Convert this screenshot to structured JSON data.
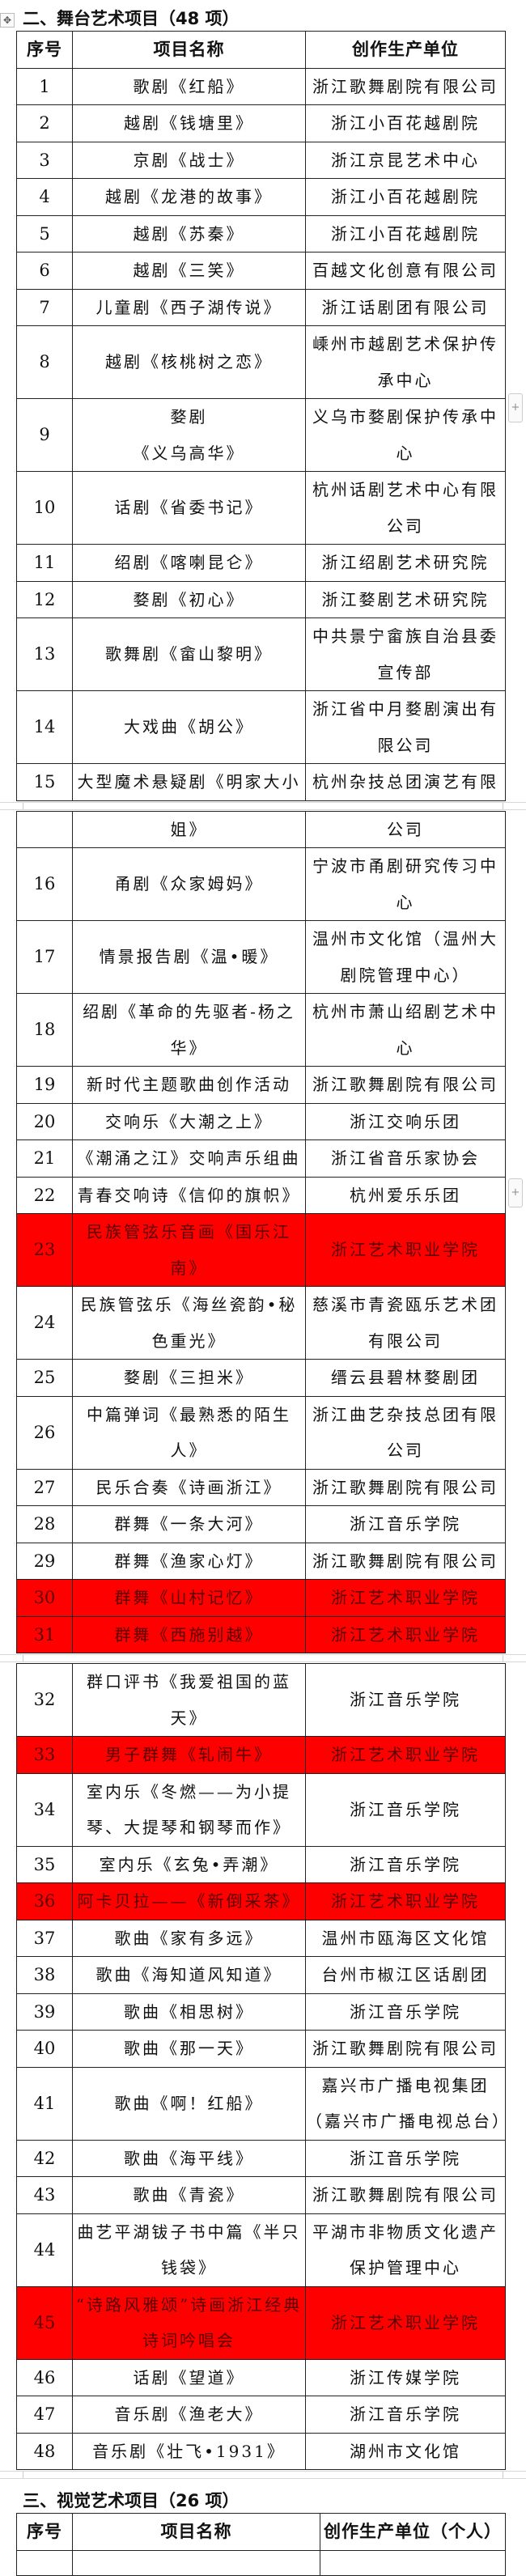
{
  "section2": {
    "title": "二、舞台艺术项目（48 项）",
    "headers": [
      "序号",
      "项目名称",
      "创作生产单位"
    ],
    "pages": [
      [
        {
          "no": "1",
          "name": "歌剧《红船》",
          "unit": "浙江歌舞剧院有限公司"
        },
        {
          "no": "2",
          "name": "越剧《钱塘里》",
          "unit": "浙江小百花越剧院"
        },
        {
          "no": "3",
          "name": "京剧《战士》",
          "unit": "浙江京昆艺术中心"
        },
        {
          "no": "4",
          "name": "越剧《龙港的故事》",
          "unit": "浙江小百花越剧院"
        },
        {
          "no": "5",
          "name": "越剧《苏秦》",
          "unit": "浙江小百花越剧院"
        },
        {
          "no": "6",
          "name": "越剧《三笑》",
          "unit": "百越文化创意有限公司"
        },
        {
          "no": "7",
          "name": "儿童剧《西子湖传说》",
          "unit": "浙江话剧团有限公司"
        },
        {
          "no": "8",
          "name": "越剧《核桃树之恋》",
          "unit": "嵊州市越剧艺术保护传承中心"
        },
        {
          "no": "9",
          "name": "婺剧\n《义乌高华》",
          "unit": "义乌市婺剧保护传承中心"
        },
        {
          "no": "10",
          "name": "话剧《省委书记》",
          "unit": "杭州话剧艺术中心有限公司"
        },
        {
          "no": "11",
          "name": "绍剧《喀喇昆仑》",
          "unit": "浙江绍剧艺术研究院"
        },
        {
          "no": "12",
          "name": "婺剧《初心》",
          "unit": "浙江婺剧艺术研究院"
        },
        {
          "no": "13",
          "name": "歌舞剧《畲山黎明》",
          "unit": "中共景宁畲族自治县委宣传部"
        },
        {
          "no": "14",
          "name": "大戏曲《胡公》",
          "unit": "浙江省中月婺剧演出有限公司"
        },
        {
          "no": "15",
          "name": "大型魔术悬疑剧《明家大小",
          "unit": "杭州杂技总团演艺有限"
        }
      ],
      [
        {
          "no": "",
          "name": "姐》",
          "unit": "公司"
        },
        {
          "no": "16",
          "name": "甬剧《众家姆妈》",
          "unit": "宁波市甬剧研究传习中心"
        },
        {
          "no": "17",
          "name": "情景报告剧《温•暖》",
          "unit": "温州市文化馆（温州大剧院管理中心）"
        },
        {
          "no": "18",
          "name": "绍剧《革命的先驱者-杨之华》",
          "unit": "杭州市萧山绍剧艺术中心"
        },
        {
          "no": "19",
          "name": "新时代主题歌曲创作活动",
          "unit": "浙江歌舞剧院有限公司"
        },
        {
          "no": "20",
          "name": "交响乐《大潮之上》",
          "unit": "浙江交响乐团"
        },
        {
          "no": "21",
          "name": "《潮涌之江》交响声乐组曲",
          "unit": "浙江省音乐家协会"
        },
        {
          "no": "22",
          "name": "青春交响诗《信仰的旗帜》",
          "unit": "杭州爱乐乐团"
        },
        {
          "no": "23",
          "name": "民族管弦乐音画《国乐江南》",
          "unit": "浙江艺术职业学院",
          "highlight": true
        },
        {
          "no": "24",
          "name": "民族管弦乐《海丝瓷韵•秘色重光》",
          "unit": "慈溪市青瓷瓯乐艺术团有限公司"
        },
        {
          "no": "25",
          "name": "婺剧《三担米》",
          "unit": "缙云县碧林婺剧团"
        },
        {
          "no": "26",
          "name": "中篇弹词《最熟悉的陌生人》",
          "unit": "浙江曲艺杂技总团有限公司"
        },
        {
          "no": "27",
          "name": "民乐合奏《诗画浙江》",
          "unit": "浙江歌舞剧院有限公司"
        },
        {
          "no": "28",
          "name": "群舞《一条大河》",
          "unit": "浙江音乐学院"
        },
        {
          "no": "29",
          "name": "群舞《渔家心灯》",
          "unit": "浙江歌舞剧院有限公司"
        },
        {
          "no": "30",
          "name": "群舞《山村记忆》",
          "unit": "浙江艺术职业学院",
          "highlight": true
        },
        {
          "no": "31",
          "name": "群舞《西施别越》",
          "unit": "浙江艺术职业学院",
          "highlight": true
        }
      ],
      [
        {
          "no": "32",
          "name": "群口评书《我爱祖国的蓝天》",
          "unit": "浙江音乐学院"
        },
        {
          "no": "33",
          "name": "男子群舞《轧闹牛》",
          "unit": "浙江艺术职业学院",
          "highlight": true
        },
        {
          "no": "34",
          "name": "室内乐《冬燃——为小提琴、大提琴和钢琴而作》",
          "unit": "浙江音乐学院"
        },
        {
          "no": "35",
          "name": "室内乐《玄兔•弄潮》",
          "unit": "浙江音乐学院"
        },
        {
          "no": "36",
          "name": "阿卡贝拉——《新倒采茶》",
          "unit": "浙江艺术职业学院",
          "highlight": true
        },
        {
          "no": "37",
          "name": "歌曲《家有多远》",
          "unit": "温州市瓯海区文化馆"
        },
        {
          "no": "38",
          "name": "歌曲《海知道风知道》",
          "unit": "台州市椒江区话剧团"
        },
        {
          "no": "39",
          "name": "歌曲《相思树》",
          "unit": "浙江音乐学院"
        },
        {
          "no": "40",
          "name": "歌曲《那一天》",
          "unit": "浙江歌舞剧院有限公司"
        },
        {
          "no": "41",
          "name": "歌曲《啊！红船》",
          "unit": "嘉兴市广播电视集团（嘉兴市广播电视总台）"
        },
        {
          "no": "42",
          "name": "歌曲《海平线》",
          "unit": "浙江音乐学院"
        },
        {
          "no": "43",
          "name": "歌曲《青瓷》",
          "unit": "浙江歌舞剧院有限公司"
        },
        {
          "no": "44",
          "name": "曲艺平湖钹子书中篇《半只钱袋》",
          "unit": "平湖市非物质文化遗产保护管理中心"
        },
        {
          "no": "45",
          "name": "“诗路风雅颂”诗画浙江经典诗词吟唱会",
          "unit": "浙江艺术职业学院",
          "highlight": true
        },
        {
          "no": "46",
          "name": "话剧《望道》",
          "unit": "浙江传媒学院"
        },
        {
          "no": "47",
          "name": "音乐剧《渔老大》",
          "unit": "浙江音乐学院"
        },
        {
          "no": "48",
          "name": "音乐剧《壮飞•1931》",
          "unit": "湖州市文化馆"
        }
      ]
    ]
  },
  "section3": {
    "title": "三、视觉艺术项目（26 项）",
    "headers": [
      "序号",
      "项目名称",
      "创作生产单位（个人）"
    ]
  },
  "colors": {
    "highlight_bg": "#ff0000",
    "highlight_text": "#5a0000",
    "border": "#222222"
  },
  "icons": {
    "table_move": "move-arrows-icon",
    "add_row": "plus-icon"
  }
}
